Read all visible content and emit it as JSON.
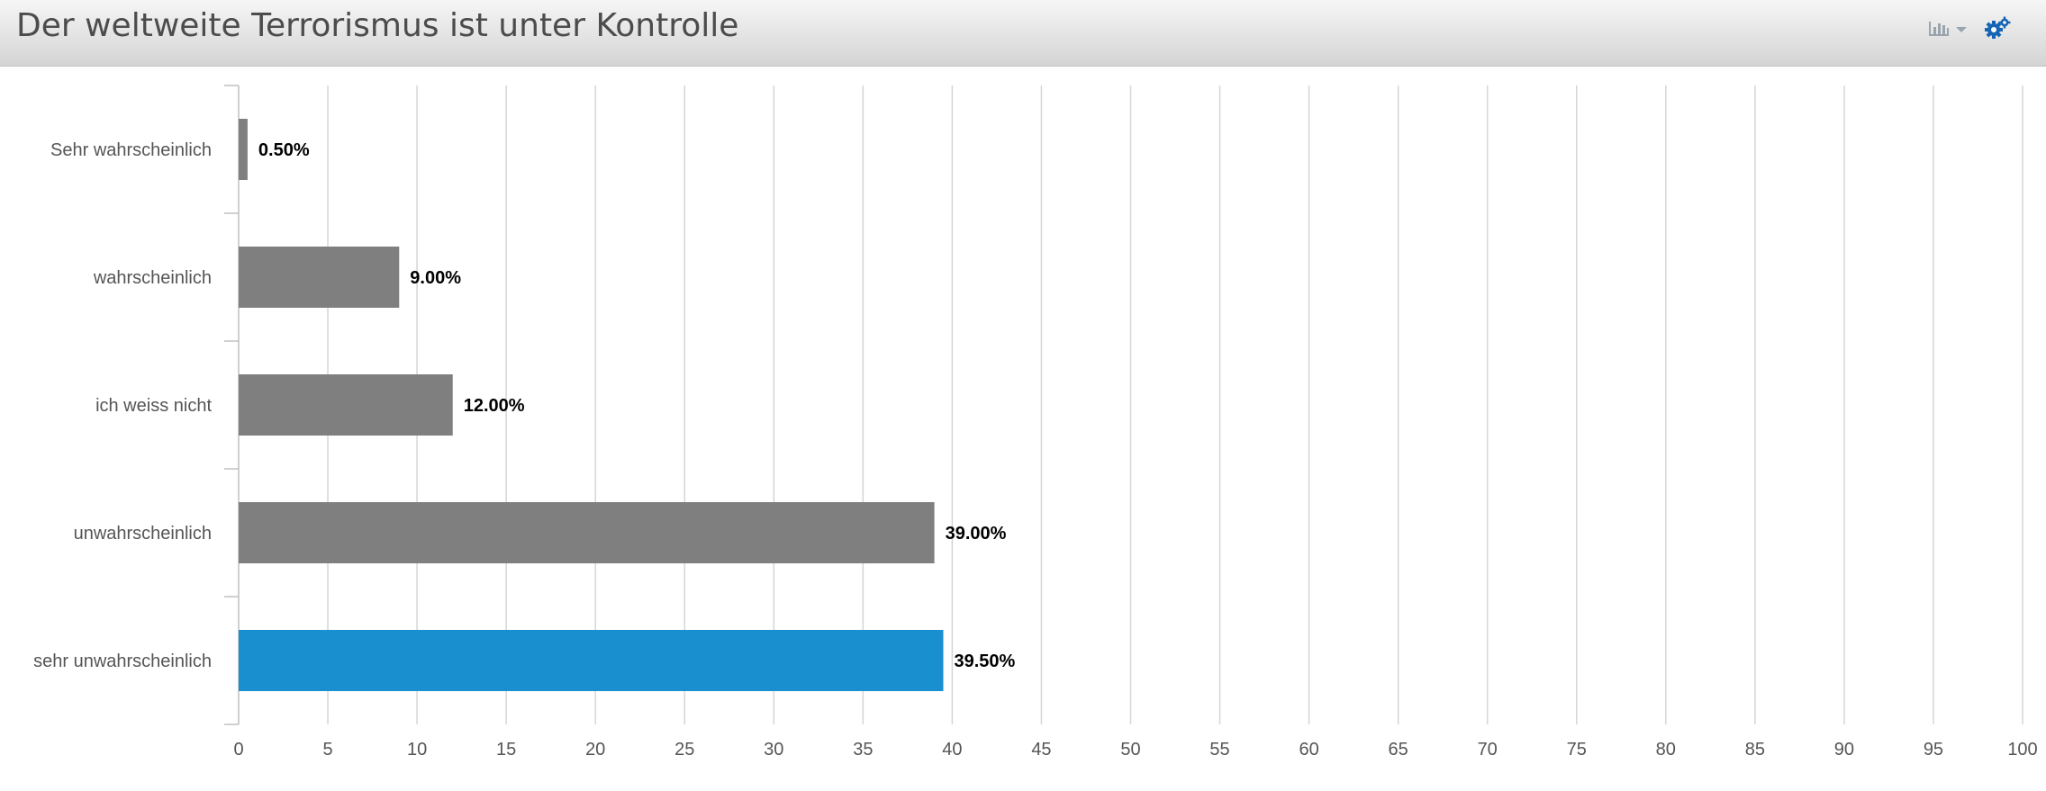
{
  "header": {
    "title": "Der weltweite Terrorismus ist unter Kontrolle"
  },
  "toolbar": {
    "chart_type_icon": "bar-chart-icon",
    "dropdown_icon": "caret-down-icon",
    "settings_icon": "gears-icon"
  },
  "colors": {
    "bar_default": "#7f7f7f",
    "bar_highlight": "#1a8fd0",
    "gridline": "#d6d6d6",
    "axis_label": "#555555",
    "data_label": "#000000",
    "settings_icon": "#1565b4"
  },
  "chart_data": {
    "type": "bar",
    "orientation": "horizontal",
    "categories": [
      "Sehr wahrscheinlich",
      "wahrscheinlich",
      "ich weiss nicht",
      "unwahrscheinlich",
      "sehr unwahrscheinlich"
    ],
    "values": [
      0.5,
      9.0,
      12.0,
      39.0,
      39.5
    ],
    "data_labels": [
      "0.50%",
      "9.00%",
      "12.00%",
      "39.00%",
      "39.50%"
    ],
    "highlight_index": 4,
    "xlim": [
      0,
      100
    ],
    "xticks": [
      0,
      5,
      10,
      15,
      20,
      25,
      30,
      35,
      40,
      45,
      50,
      55,
      60,
      65,
      70,
      75,
      80,
      85,
      90,
      95,
      100
    ],
    "title": "",
    "xlabel": "",
    "ylabel": "",
    "grid": true,
    "legend": false
  }
}
